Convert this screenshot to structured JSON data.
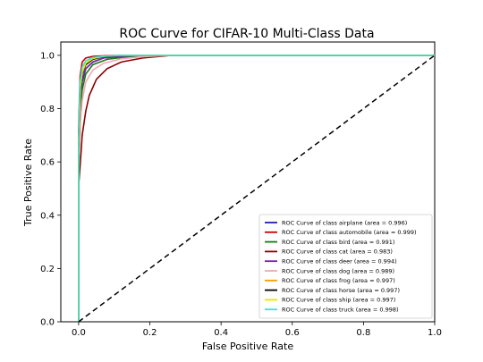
{
  "chart_data": {
    "type": "line",
    "title": "ROC Curve for CIFAR-10 Multi-Class Data",
    "xlabel": "False Positive Rate",
    "ylabel": "True Positive Rate",
    "xlim": [
      -0.05,
      1.0
    ],
    "ylim": [
      0.0,
      1.05
    ],
    "xticks": [
      "0.0",
      "0.2",
      "0.4",
      "0.6",
      "0.8",
      "1.0"
    ],
    "yticks": [
      "0.0",
      "0.2",
      "0.4",
      "0.6",
      "0.8",
      "1.0"
    ],
    "grid": false,
    "legend_position": "lower-right",
    "diagonal": {
      "x": [
        0,
        1
      ],
      "y": [
        0,
        1
      ],
      "color": "#000000",
      "style": "dashed"
    },
    "series": [
      {
        "name": "ROC Curve of class airplane (area = 0.996)",
        "color": "#1f1fa8",
        "x": [
          0,
          0,
          0.005,
          0.01,
          0.02,
          0.04,
          0.07,
          0.12,
          0.2,
          1.0
        ],
        "y": [
          0,
          0.6,
          0.84,
          0.9,
          0.95,
          0.975,
          0.99,
          0.996,
          1.0,
          1.0
        ]
      },
      {
        "name": "ROC Curve of class automobile (area = 0.999)",
        "color": "#cc0000",
        "x": [
          0,
          0,
          0.004,
          0.01,
          0.02,
          0.04,
          0.08,
          0.15,
          1.0
        ],
        "y": [
          0,
          0.72,
          0.92,
          0.975,
          0.99,
          0.996,
          0.999,
          1.0,
          1.0
        ]
      },
      {
        "name": "ROC Curve of class bird (area = 0.991)",
        "color": "#1a7a1a",
        "x": [
          0,
          0,
          0.005,
          0.01,
          0.02,
          0.04,
          0.08,
          0.14,
          0.22,
          1.0
        ],
        "y": [
          0,
          0.55,
          0.8,
          0.87,
          0.93,
          0.965,
          0.985,
          0.995,
          1.0,
          1.0
        ]
      },
      {
        "name": "ROC Curve of class cat (area = 0.983)",
        "color": "#8b0000",
        "x": [
          0,
          0,
          0.005,
          0.01,
          0.02,
          0.03,
          0.05,
          0.08,
          0.12,
          0.18,
          0.26,
          1.0
        ],
        "y": [
          0,
          0.51,
          0.6,
          0.7,
          0.79,
          0.85,
          0.91,
          0.95,
          0.975,
          0.99,
          1.0,
          1.0
        ]
      },
      {
        "name": "ROC Curve of class deer (area = 0.994)",
        "color": "#7b1fa2",
        "x": [
          0,
          0,
          0.005,
          0.01,
          0.02,
          0.04,
          0.07,
          0.12,
          0.2,
          1.0
        ],
        "y": [
          0,
          0.6,
          0.85,
          0.91,
          0.95,
          0.975,
          0.99,
          0.997,
          1.0,
          1.0
        ]
      },
      {
        "name": "ROC Curve of class dog (area = 0.989)",
        "color": "#f4a6b4",
        "x": [
          0,
          0,
          0.005,
          0.01,
          0.02,
          0.04,
          0.07,
          0.12,
          0.18,
          0.25,
          1.0
        ],
        "y": [
          0,
          0.55,
          0.75,
          0.83,
          0.9,
          0.945,
          0.97,
          0.987,
          0.995,
          1.0,
          1.0
        ]
      },
      {
        "name": "ROC Curve of class frog (area = 0.997)",
        "color": "#ff9900",
        "x": [
          0,
          0,
          0.005,
          0.01,
          0.02,
          0.04,
          0.07,
          0.12,
          1.0
        ],
        "y": [
          0,
          0.65,
          0.87,
          0.93,
          0.97,
          0.99,
          0.997,
          1.0,
          1.0
        ]
      },
      {
        "name": "ROC Curve of class horse (area = 0.997)",
        "color": "#000000",
        "x": [
          0,
          0,
          0.005,
          0.01,
          0.02,
          0.04,
          0.07,
          0.12,
          1.0
        ],
        "y": [
          0,
          0.64,
          0.87,
          0.93,
          0.965,
          0.985,
          0.995,
          1.0,
          1.0
        ]
      },
      {
        "name": "ROC Curve of class ship (area = 0.997)",
        "color": "#e6e600",
        "x": [
          0,
          0,
          0.005,
          0.01,
          0.02,
          0.04,
          0.07,
          0.12,
          1.0
        ],
        "y": [
          0,
          0.66,
          0.88,
          0.935,
          0.97,
          0.988,
          0.996,
          1.0,
          1.0
        ]
      },
      {
        "name": "ROC Curve of class truck (area = 0.998)",
        "color": "#40e0d0",
        "x": [
          0,
          0,
          0.004,
          0.01,
          0.02,
          0.04,
          0.07,
          0.12,
          1.0
        ],
        "y": [
          0,
          0.68,
          0.9,
          0.955,
          0.98,
          0.992,
          0.997,
          1.0,
          1.0
        ]
      }
    ]
  }
}
